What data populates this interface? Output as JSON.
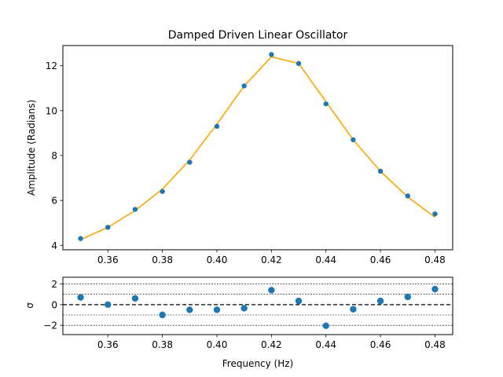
{
  "chart_data": [
    {
      "type": "scatter",
      "title": "Damped Driven Linear Oscillator",
      "xlabel": "",
      "ylabel": "Amplitude (Radians)",
      "xlim": [
        0.3435,
        0.4865
      ],
      "ylim": [
        3.8,
        12.9
      ],
      "x_ticks": [
        "0.36",
        "0.38",
        "0.40",
        "0.42",
        "0.44",
        "0.46",
        "0.48"
      ],
      "x_tick_values": [
        0.36,
        0.38,
        0.4,
        0.42,
        0.44,
        0.46,
        0.48
      ],
      "y_ticks": [
        "4",
        "6",
        "8",
        "10",
        "12"
      ],
      "y_tick_values": [
        4,
        6,
        8,
        10,
        12
      ],
      "grid": false,
      "series": [
        {
          "kind": "points",
          "color": "#1f77b4",
          "x": [
            0.35,
            0.36,
            0.37,
            0.38,
            0.39,
            0.4,
            0.41,
            0.42,
            0.43,
            0.44,
            0.45,
            0.46,
            0.47,
            0.48
          ],
          "values": [
            4.3,
            4.8,
            5.6,
            6.4,
            7.7,
            9.3,
            11.1,
            12.5,
            12.1,
            10.3,
            8.7,
            7.3,
            6.2,
            5.4
          ]
        },
        {
          "kind": "line",
          "color": "#ffa500",
          "x": [
            0.35,
            0.36,
            0.37,
            0.38,
            0.39,
            0.4,
            0.41,
            0.42,
            0.43,
            0.44,
            0.45,
            0.46,
            0.47,
            0.48
          ],
          "values": [
            4.25,
            4.8,
            5.55,
            6.5,
            7.8,
            9.4,
            11.1,
            12.4,
            12.1,
            10.4,
            8.7,
            7.3,
            6.15,
            5.25
          ]
        }
      ]
    },
    {
      "type": "scatter",
      "title": "",
      "xlabel": "Frequency (Hz)",
      "ylabel": "σ",
      "xlim": [
        0.3435,
        0.4865
      ],
      "ylim": [
        -2.9,
        2.65
      ],
      "x_ticks": [
        "0.36",
        "0.38",
        "0.40",
        "0.42",
        "0.44",
        "0.46",
        "0.48"
      ],
      "x_tick_values": [
        0.36,
        0.38,
        0.4,
        0.42,
        0.44,
        0.46,
        0.48
      ],
      "y_ticks": [
        "−2",
        "0",
        "2"
      ],
      "y_tick_values": [
        -2,
        0,
        2
      ],
      "reference_lines": [
        {
          "y": 0,
          "style": "dashed",
          "color": "#000000"
        },
        {
          "y": 1,
          "style": "dotted",
          "color": "#000000"
        },
        {
          "y": -1,
          "style": "dotted",
          "color": "#000000"
        },
        {
          "y": 2,
          "style": "dotted",
          "color": "#000000"
        },
        {
          "y": -2,
          "style": "dotted",
          "color": "#000000"
        }
      ],
      "grid": false,
      "series": [
        {
          "kind": "points",
          "color": "#1f77b4",
          "x": [
            0.35,
            0.36,
            0.37,
            0.38,
            0.39,
            0.4,
            0.41,
            0.42,
            0.43,
            0.44,
            0.45,
            0.46,
            0.47,
            0.48
          ],
          "values": [
            0.7,
            0.0,
            0.6,
            -1.0,
            -0.5,
            -0.5,
            -0.35,
            1.4,
            0.35,
            -2.05,
            -0.45,
            0.35,
            0.75,
            1.5
          ]
        }
      ]
    }
  ]
}
